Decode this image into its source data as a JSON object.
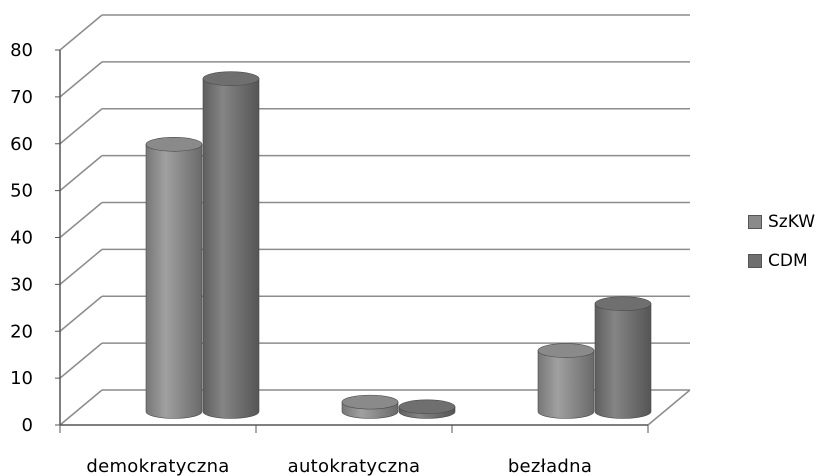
{
  "chart_data": {
    "type": "bar",
    "categories": [
      "demokratyczna",
      "autokratyczna",
      "bezładna"
    ],
    "series": [
      {
        "name": "SzKW",
        "values": [
          57,
          2,
          13
        ],
        "color": "#8a8a8a"
      },
      {
        "name": "CDM",
        "values": [
          71,
          1,
          23
        ],
        "color": "#6f6f6f"
      }
    ],
    "ylim": [
      0,
      80
    ],
    "yticks": [
      0,
      10,
      20,
      30,
      40,
      50,
      60,
      70,
      80
    ],
    "grid": true,
    "legend_position": "right",
    "style": "3d-cylinder"
  }
}
